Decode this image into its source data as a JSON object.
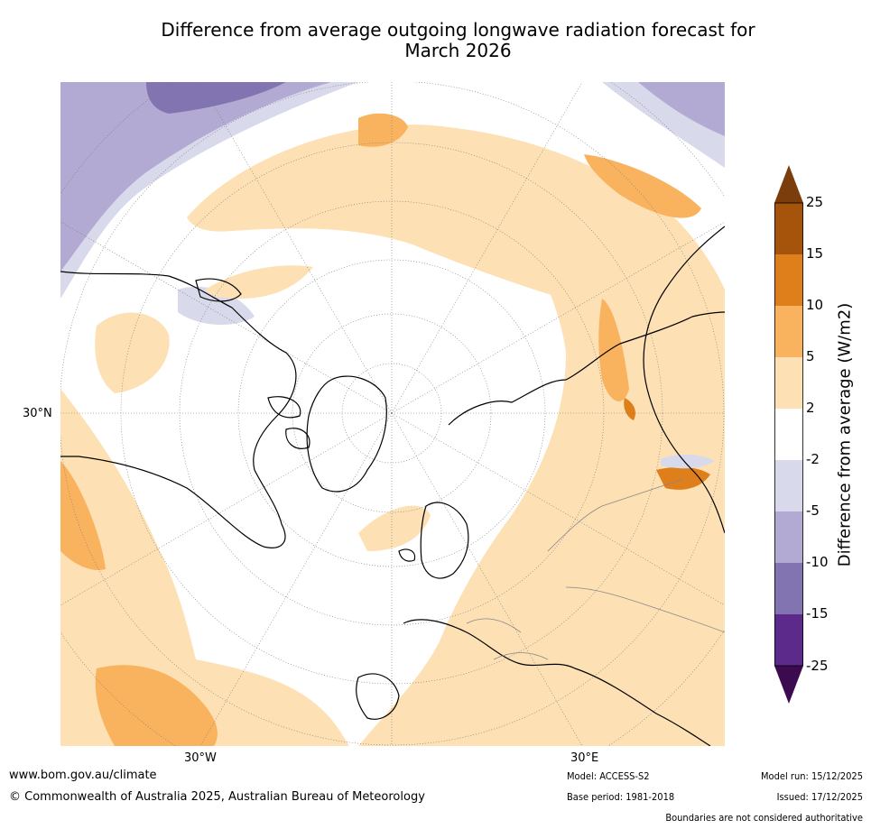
{
  "title_line1": "Difference from average outgoing longwave radiation forecast for",
  "title_line2": "March 2026",
  "map": {
    "lat_label": "30°N",
    "lon_labels": [
      "30°W",
      "30°E"
    ]
  },
  "colorbar": {
    "label": "Difference from average (W/m2)",
    "ticks": [
      "25",
      "15",
      "10",
      "5",
      "2",
      "-2",
      "-5",
      "-10",
      "-15",
      "-25"
    ],
    "colors": {
      "above_25": "#7b3d0b",
      "15_25": "#a6530c",
      "10_15": "#df7f1b",
      "5_10": "#f9b35e",
      "2_5": "#fde0b4",
      "neg2_2": "#ffffff",
      "neg5_neg2": "#d9d9ec",
      "neg10_neg5": "#b2aad2",
      "neg15_neg10": "#8274b0",
      "neg25_neg15": "#5b2a8b",
      "below_neg25": "#3c0a4e"
    }
  },
  "footer": {
    "website": "www.bom.gov.au/climate",
    "copyright": "© Commonwealth of Australia 2025, Australian Bureau of Meteorology",
    "model": "Model: ACCESS-S2",
    "base_period": "Base period: 1981-2018",
    "model_run": "Model run: 15/12/2025",
    "issued": "Issued: 17/12/2025",
    "boundaries": "Boundaries are not considered authoritative"
  }
}
